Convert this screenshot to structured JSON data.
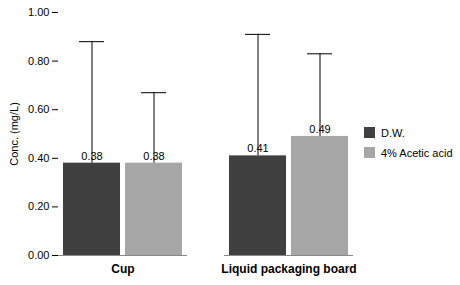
{
  "chart_data": {
    "type": "bar",
    "y_label": "Conc. (mg/L)",
    "categories": [
      "Cup",
      "Liquid packaging board"
    ],
    "series": [
      {
        "name": "D.W.",
        "color": "#404040",
        "values": [
          0.38,
          0.41
        ],
        "errors": [
          0.5,
          0.5
        ]
      },
      {
        "name": "4% Acetic acid",
        "color": "#a6a6a6",
        "values": [
          0.38,
          0.49
        ],
        "errors": [
          0.29,
          0.34
        ]
      }
    ],
    "ylim": [
      0,
      1.0
    ],
    "yticks": [
      {
        "value": 0,
        "label": "0.00"
      },
      {
        "value": 0.2,
        "label": "0.20"
      },
      {
        "value": 0.4,
        "label": "0.40"
      },
      {
        "value": 0.6,
        "label": "0.60"
      },
      {
        "value": 0.8,
        "label": "0.80"
      },
      {
        "value": 1.0,
        "label": "1.00"
      }
    ],
    "grid": false,
    "legend": "right",
    "data_labels": true
  }
}
